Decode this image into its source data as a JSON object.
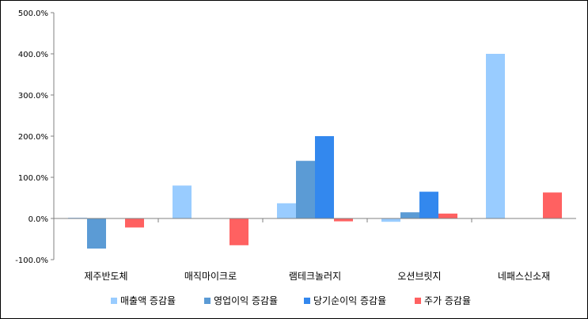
{
  "chart_data": {
    "type": "bar",
    "categories": [
      "제주반도체",
      "매직마이크로",
      "램테크놀러지",
      "오션브릿지",
      "네패스신소재"
    ],
    "ylim": [
      -100,
      500
    ],
    "yticks": [
      -100,
      0,
      100,
      200,
      300,
      400,
      500
    ],
    "ytick_labels": [
      "-100.0%",
      "0.0%",
      "100.0%",
      "200.0%",
      "300.0%",
      "400.0%",
      "500.0%"
    ],
    "grid": false,
    "legend": "bottom",
    "series": [
      {
        "name": "매출액 증감율",
        "color": "#99ccff",
        "values": [
          2,
          80,
          37,
          -8,
          400
        ]
      },
      {
        "name": "영업이익 증감율",
        "color": "#5b9bd5",
        "values": [
          -73,
          0,
          140,
          15,
          0
        ]
      },
      {
        "name": "당기순이익 증감율",
        "color": "#3388ee",
        "values": [
          0,
          0,
          200,
          65,
          0
        ]
      },
      {
        "name": "주가 증감율",
        "color": "#ff6161",
        "values": [
          -22,
          -65,
          -7,
          12,
          63
        ]
      }
    ]
  }
}
